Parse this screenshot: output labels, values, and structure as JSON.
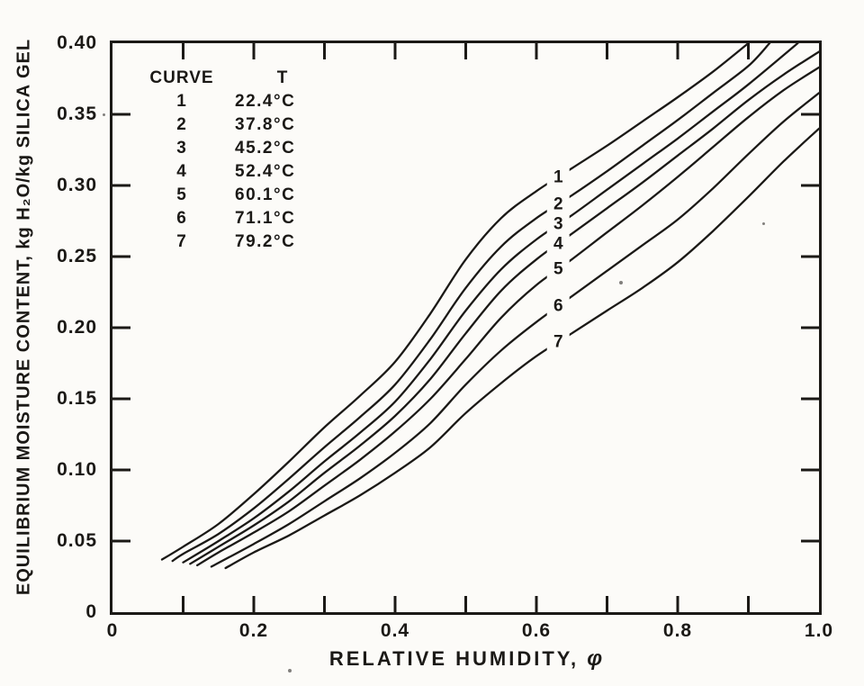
{
  "colors": {
    "paper": "#fcfbf8",
    "ink": "#1b1916"
  },
  "chart_data": {
    "type": "line",
    "xlabel": "RELATIVE HUMIDITY, φ",
    "xlabel_text": "RELATIVE HUMIDITY,",
    "xlabel_symbol": "φ",
    "ylabel": "EQUILIBRIUM MOISTURE CONTENT, kg H₂O/kg SILICA GEL",
    "xlim": [
      0,
      1.0
    ],
    "ylim": [
      0,
      0.4
    ],
    "grid": false,
    "x_axis": {
      "major_tick_values": [
        0,
        0.2,
        0.4,
        0.6,
        0.8,
        1.0
      ],
      "major_tick_labels": [
        "0",
        "0.2",
        "0.4",
        "0.6",
        "0.8",
        "1.0"
      ],
      "drawn_tick_values": [
        0.1,
        0.2,
        0.3,
        0.4,
        0.5,
        0.6,
        0.7,
        0.8,
        0.9
      ]
    },
    "y_axis": {
      "tick_values": [
        0,
        0.05,
        0.1,
        0.15,
        0.2,
        0.25,
        0.3,
        0.35,
        0.4
      ],
      "tick_labels": [
        "0",
        "0.05",
        "0.10",
        "0.15",
        "0.20",
        "0.25",
        "0.30",
        "0.35",
        "0.40"
      ],
      "drawn_tick_values": [
        0.05,
        0.1,
        0.15,
        0.2,
        0.25,
        0.3,
        0.35
      ]
    },
    "legend": {
      "position": "inside top-left",
      "col_headers": [
        "CURVE",
        "T"
      ],
      "rows": [
        {
          "curve": "1",
          "T": "22.4°C"
        },
        {
          "curve": "2",
          "T": "37.8°C"
        },
        {
          "curve": "3",
          "T": "45.2°C"
        },
        {
          "curve": "4",
          "T": "52.4°C"
        },
        {
          "curve": "5",
          "T": "60.1°C"
        },
        {
          "curve": "6",
          "T": "71.1°C"
        },
        {
          "curve": "7",
          "T": "79.2°C"
        }
      ]
    },
    "curve_label_x": 0.631,
    "series": [
      {
        "name": "1",
        "temperature_C": 22.4,
        "points": [
          [
            0.07,
            0.037
          ],
          [
            0.1,
            0.046
          ],
          [
            0.15,
            0.062
          ],
          [
            0.2,
            0.083
          ],
          [
            0.25,
            0.106
          ],
          [
            0.3,
            0.13
          ],
          [
            0.35,
            0.152
          ],
          [
            0.4,
            0.176
          ],
          [
            0.45,
            0.21
          ],
          [
            0.5,
            0.248
          ],
          [
            0.55,
            0.277
          ],
          [
            0.6,
            0.296
          ],
          [
            0.65,
            0.312
          ],
          [
            0.7,
            0.328
          ],
          [
            0.75,
            0.345
          ],
          [
            0.8,
            0.362
          ],
          [
            0.85,
            0.38
          ],
          [
            0.9,
            0.4
          ]
        ]
      },
      {
        "name": "2",
        "temperature_C": 37.8,
        "points": [
          [
            0.085,
            0.036
          ],
          [
            0.1,
            0.041
          ],
          [
            0.15,
            0.055
          ],
          [
            0.2,
            0.073
          ],
          [
            0.25,
            0.094
          ],
          [
            0.3,
            0.116
          ],
          [
            0.35,
            0.137
          ],
          [
            0.4,
            0.16
          ],
          [
            0.45,
            0.192
          ],
          [
            0.5,
            0.228
          ],
          [
            0.55,
            0.257
          ],
          [
            0.6,
            0.277
          ],
          [
            0.65,
            0.293
          ],
          [
            0.7,
            0.31
          ],
          [
            0.75,
            0.328
          ],
          [
            0.8,
            0.346
          ],
          [
            0.85,
            0.365
          ],
          [
            0.9,
            0.384
          ],
          [
            0.93,
            0.4
          ]
        ]
      },
      {
        "name": "3",
        "temperature_C": 45.2,
        "points": [
          [
            0.1,
            0.035
          ],
          [
            0.15,
            0.05
          ],
          [
            0.2,
            0.066
          ],
          [
            0.25,
            0.085
          ],
          [
            0.3,
            0.106
          ],
          [
            0.35,
            0.126
          ],
          [
            0.4,
            0.148
          ],
          [
            0.45,
            0.178
          ],
          [
            0.5,
            0.212
          ],
          [
            0.55,
            0.241
          ],
          [
            0.6,
            0.262
          ],
          [
            0.65,
            0.279
          ],
          [
            0.7,
            0.297
          ],
          [
            0.75,
            0.315
          ],
          [
            0.8,
            0.333
          ],
          [
            0.85,
            0.352
          ],
          [
            0.9,
            0.371
          ],
          [
            0.97,
            0.4
          ]
        ]
      },
      {
        "name": "4",
        "temperature_C": 52.4,
        "points": [
          [
            0.11,
            0.034
          ],
          [
            0.15,
            0.046
          ],
          [
            0.2,
            0.061
          ],
          [
            0.25,
            0.078
          ],
          [
            0.3,
            0.098
          ],
          [
            0.35,
            0.117
          ],
          [
            0.4,
            0.138
          ],
          [
            0.45,
            0.164
          ],
          [
            0.5,
            0.196
          ],
          [
            0.55,
            0.226
          ],
          [
            0.6,
            0.248
          ],
          [
            0.65,
            0.266
          ],
          [
            0.7,
            0.284
          ],
          [
            0.75,
            0.302
          ],
          [
            0.8,
            0.321
          ],
          [
            0.85,
            0.34
          ],
          [
            0.9,
            0.36
          ],
          [
            0.95,
            0.378
          ],
          [
            1.0,
            0.394
          ]
        ]
      },
      {
        "name": "5",
        "temperature_C": 60.1,
        "points": [
          [
            0.12,
            0.033
          ],
          [
            0.15,
            0.042
          ],
          [
            0.2,
            0.056
          ],
          [
            0.25,
            0.071
          ],
          [
            0.3,
            0.089
          ],
          [
            0.35,
            0.107
          ],
          [
            0.4,
            0.127
          ],
          [
            0.45,
            0.15
          ],
          [
            0.5,
            0.178
          ],
          [
            0.55,
            0.207
          ],
          [
            0.6,
            0.23
          ],
          [
            0.65,
            0.248
          ],
          [
            0.7,
            0.267
          ],
          [
            0.75,
            0.286
          ],
          [
            0.8,
            0.306
          ],
          [
            0.85,
            0.327
          ],
          [
            0.9,
            0.348
          ],
          [
            0.95,
            0.367
          ],
          [
            1.0,
            0.383
          ]
        ]
      },
      {
        "name": "6",
        "temperature_C": 71.1,
        "points": [
          [
            0.14,
            0.032
          ],
          [
            0.2,
            0.048
          ],
          [
            0.25,
            0.062
          ],
          [
            0.3,
            0.078
          ],
          [
            0.35,
            0.094
          ],
          [
            0.4,
            0.112
          ],
          [
            0.45,
            0.133
          ],
          [
            0.5,
            0.16
          ],
          [
            0.55,
            0.184
          ],
          [
            0.6,
            0.204
          ],
          [
            0.65,
            0.222
          ],
          [
            0.7,
            0.24
          ],
          [
            0.75,
            0.258
          ],
          [
            0.8,
            0.276
          ],
          [
            0.85,
            0.298
          ],
          [
            0.9,
            0.322
          ],
          [
            0.95,
            0.345
          ],
          [
            1.0,
            0.365
          ]
        ]
      },
      {
        "name": "7",
        "temperature_C": 79.2,
        "points": [
          [
            0.16,
            0.031
          ],
          [
            0.2,
            0.042
          ],
          [
            0.25,
            0.054
          ],
          [
            0.3,
            0.068
          ],
          [
            0.35,
            0.082
          ],
          [
            0.4,
            0.098
          ],
          [
            0.45,
            0.116
          ],
          [
            0.5,
            0.14
          ],
          [
            0.55,
            0.161
          ],
          [
            0.6,
            0.18
          ],
          [
            0.65,
            0.196
          ],
          [
            0.7,
            0.212
          ],
          [
            0.75,
            0.228
          ],
          [
            0.8,
            0.246
          ],
          [
            0.85,
            0.268
          ],
          [
            0.9,
            0.292
          ],
          [
            0.95,
            0.317
          ],
          [
            1.0,
            0.34
          ]
        ]
      }
    ]
  }
}
